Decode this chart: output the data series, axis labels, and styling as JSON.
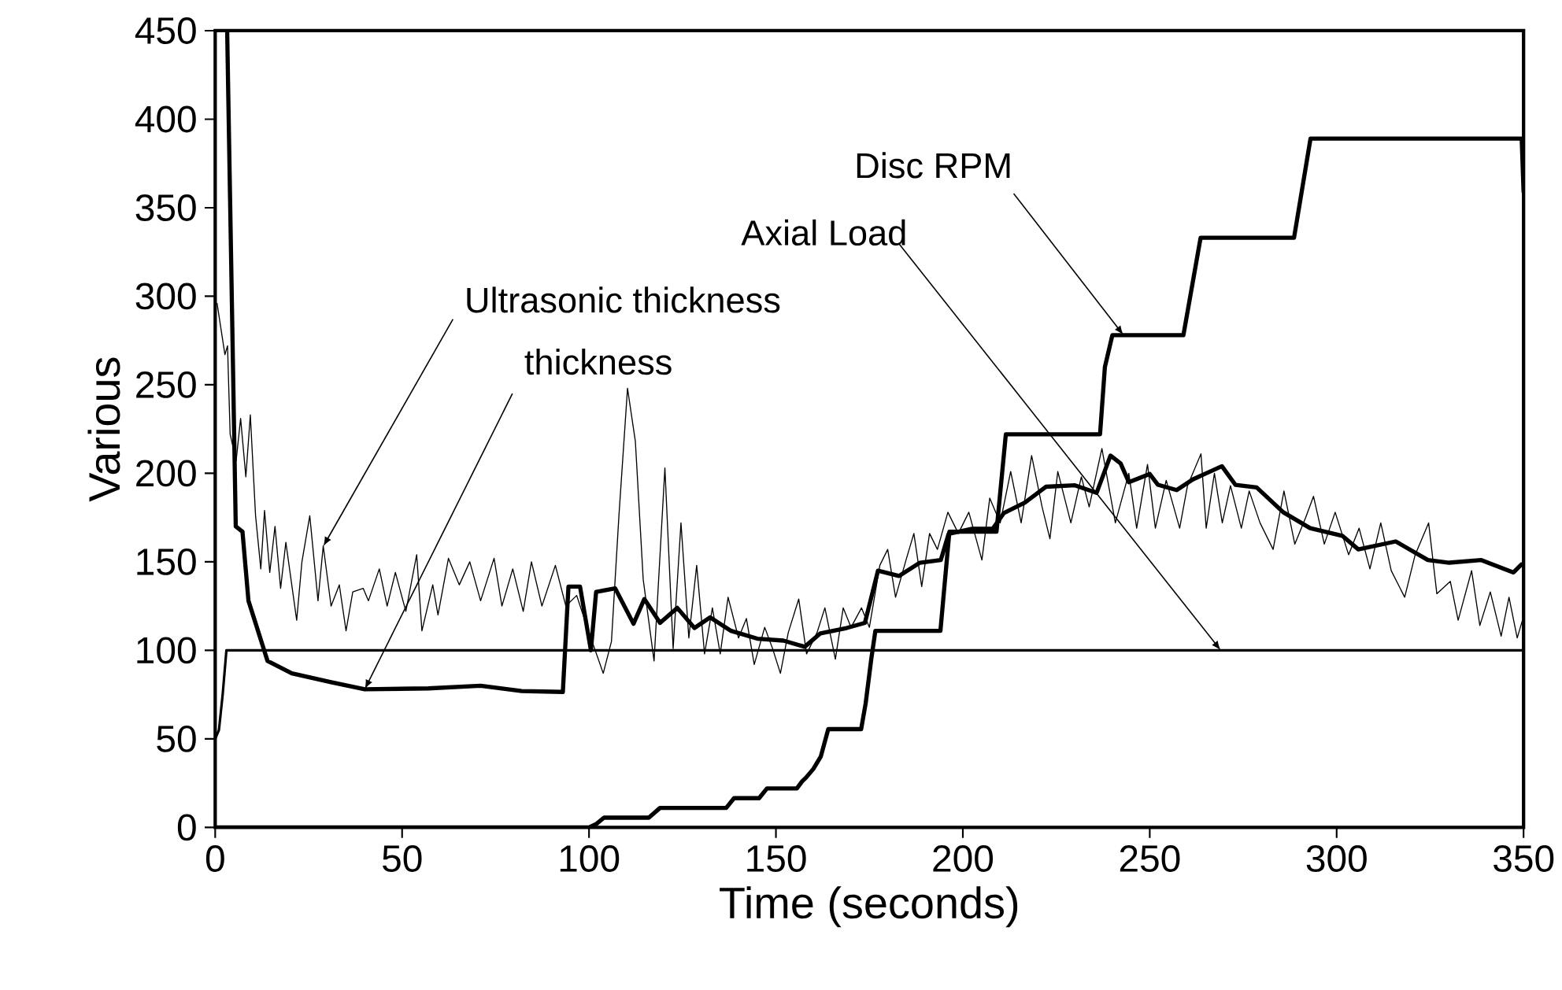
{
  "chart_data": {
    "type": "line",
    "xlabel": "Time (seconds)",
    "ylabel": "Various",
    "xlim": [
      0,
      350
    ],
    "ylim": [
      0,
      450
    ],
    "xticks": [
      0,
      50,
      100,
      150,
      200,
      250,
      300,
      350
    ],
    "yticks": [
      0,
      50,
      100,
      150,
      200,
      250,
      300,
      350,
      400,
      450
    ],
    "annotations": [
      {
        "text": "Ultrasonic thickness",
        "x": 28.9,
        "y": 158.7
      },
      {
        "text": "thickness",
        "x": 40,
        "y": 78
      },
      {
        "text": "Axial Load",
        "x": 269,
        "y": 100
      },
      {
        "text": "Disc RPM",
        "x": 243,
        "y": 278
      }
    ],
    "series": [
      {
        "color": "#000000",
        "x": [
          0.5,
          2.6,
          3.3,
          4,
          5.6,
          6.8,
          8.2,
          9.4,
          10.8,
          12.2,
          13.2,
          14.6,
          16,
          17.5,
          18.9,
          21.8,
          23.2,
          25.3,
          27.5,
          28.9,
          31,
          33.2,
          35,
          36.8,
          39.6,
          41,
          43.9,
          46,
          48.2,
          51,
          53.9,
          55.3,
          58.2,
          59.6,
          62.4,
          65.3,
          68.1,
          71,
          74.6,
          76.7,
          79.6,
          82.4,
          84.6,
          87.4,
          91,
          93.8,
          96.7,
          99.5,
          103.8,
          106,
          108,
          110.3,
          112.4,
          114.5,
          117.4,
          120.3,
          122.5,
          124.6,
          126.7,
          128.8,
          130.9,
          133,
          135.1,
          137.2,
          140,
          142.1,
          144.2,
          147,
          149.1,
          151.2,
          153.3,
          156.1,
          158.2,
          161,
          163.1,
          165.9,
          168,
          170.1,
          172.9,
          175,
          177.8,
          179.9,
          182,
          184.8,
          186.9,
          189,
          191.1,
          193.2,
          196,
          198.8,
          201.6,
          205.1,
          207.2,
          210,
          212.8,
          215.6,
          218.4,
          221.2,
          223.3,
          225.4,
          228.9,
          231.7,
          233.8,
          237.2,
          240.8,
          244.4,
          246.5,
          249.4,
          251.5,
          254.4,
          258,
          260.1,
          263.7,
          265.1,
          267.3,
          269.4,
          271.6,
          274.5,
          276.6,
          279.5,
          283,
          285.9,
          288.8,
          291.7,
          293.8,
          296.7,
          299.6,
          303.2,
          306,
          308.9,
          311.8,
          314.6,
          318.2,
          321,
          324.6,
          326.8,
          330.4,
          332.5,
          336.1,
          338.3,
          341.1,
          344,
          346.1,
          348.3,
          349.7
        ],
        "values": [
          296,
          267,
          272,
          222,
          207,
          231,
          198,
          233,
          176,
          146,
          179,
          144,
          170,
          135,
          161,
          117,
          150,
          176,
          128,
          159,
          125,
          137,
          111,
          133,
          135,
          128,
          146,
          125,
          144,
          122,
          154,
          111,
          137,
          120,
          152,
          137,
          150,
          128,
          152,
          125,
          146,
          122,
          150,
          125,
          148,
          125,
          131,
          113,
          87,
          105,
          176,
          248,
          218,
          140,
          94,
          203,
          101,
          172,
          107,
          148,
          98,
          124,
          98,
          130,
          107,
          118,
          92,
          113,
          101,
          87,
          110,
          129,
          98,
          110,
          124,
          95,
          124,
          113,
          124,
          113,
          148,
          157,
          130,
          151,
          166,
          136,
          166,
          157,
          178,
          166,
          178,
          151,
          186,
          172,
          201,
          172,
          210,
          181,
          163,
          201,
          172,
          198,
          181,
          214,
          172,
          200,
          169,
          205,
          169,
          196,
          169,
          193,
          211,
          169,
          200,
          172,
          193,
          169,
          190,
          172,
          157,
          190,
          160,
          175,
          187,
          160,
          178,
          154,
          169,
          146,
          172,
          145,
          130,
          154,
          172,
          132,
          139,
          117,
          145,
          114,
          133,
          108,
          130,
          107,
          117
        ]
      },
      {
        "color": "#000000",
        "x": [
          3.2,
          5.5,
          7.3,
          8.9,
          14,
          20.5,
          31,
          40,
          57,
          71,
          82,
          93,
          94.5,
          97.6,
          100.5,
          101.9,
          107,
          111.9,
          114.8,
          119,
          123.6,
          128.2,
          132.4,
          138,
          145,
          152,
          157.7,
          161.9,
          168.9,
          173.8,
          177.3,
          182.9,
          188.5,
          194.1,
          196.2,
          202.5,
          208,
          211,
          216.6,
          222.2,
          230,
          235.8,
          239.5,
          242.2,
          244.4,
          250,
          252.2,
          257.2,
          261.5,
          269.3,
          272.9,
          278.6,
          285.7,
          292.9,
          301.5,
          305.8,
          315.8,
          324.4,
          330.1,
          338.7,
          347.3,
          349.4
        ],
        "values": [
          450,
          170,
          167,
          128,
          94,
          87,
          82,
          78,
          78.5,
          80,
          77,
          76.5,
          136,
          136,
          100,
          133,
          135,
          115,
          129,
          115.5,
          124,
          112.6,
          118.6,
          111,
          106.6,
          105.5,
          102,
          109.6,
          112.6,
          115.5,
          145,
          142,
          149.5,
          151,
          165.8,
          168.7,
          168.7,
          177.6,
          183.5,
          192.4,
          193.2,
          189,
          210,
          205.6,
          195,
          199.6,
          193.5,
          190.5,
          196.5,
          204,
          193.5,
          192,
          178,
          169,
          164.7,
          157,
          161.5,
          151,
          149.5,
          151,
          144,
          148.5
        ]
      },
      {
        "color": "#000000",
        "x": [
          0,
          1,
          2,
          3,
          350
        ],
        "values": [
          50,
          55,
          75,
          100,
          100
        ]
      },
      {
        "color": "#000000",
        "x": [
          0,
          100,
          102,
          104,
          116,
          119,
          136.7,
          138.8,
          145.5,
          147.6,
          155.6,
          157,
          158,
          160,
          162,
          164,
          172.8,
          174,
          175.5,
          176.6,
          194,
          196.4,
          209,
          211.5,
          236.7,
          238,
          240,
          259,
          263.6,
          288.6,
          293,
          349.5,
          350
        ],
        "values": [
          0,
          0,
          2,
          5.5,
          5.5,
          11,
          11,
          16.5,
          16.5,
          22,
          22,
          26,
          28,
          33,
          40,
          55.5,
          55.5,
          70,
          95,
          111,
          111,
          167,
          167,
          222,
          222,
          260,
          278,
          278,
          333,
          333,
          389,
          389,
          359
        ]
      }
    ]
  }
}
